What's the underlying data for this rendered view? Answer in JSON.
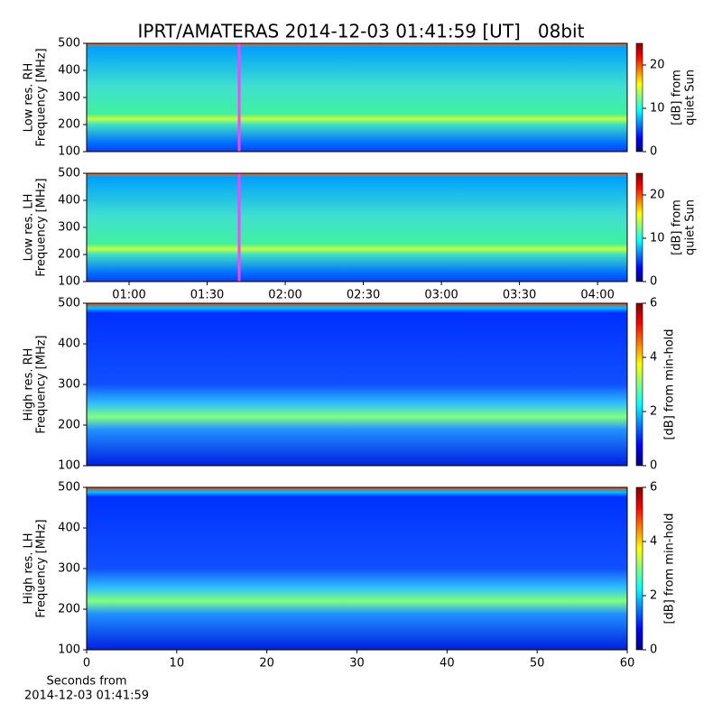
{
  "title": "IPRT/AMATERAS 2014-12-03 01:41:59 [UT]   08bit",
  "chart_data": [
    {
      "type": "spectrogram",
      "ylabel": [
        "Low res. RH",
        "Frequency [MHz]"
      ],
      "xlim": [
        43.7,
        251.4
      ],
      "ylim": [
        100,
        500
      ],
      "yticks": [
        100,
        200,
        300,
        400,
        500
      ],
      "colorbar": {
        "label": [
          "[dB] from",
          "quiet Sun"
        ],
        "lim": [
          0,
          25
        ],
        "ticks": [
          0,
          10,
          20
        ]
      }
    },
    {
      "type": "spectrogram",
      "ylabel": [
        "Low res. LH",
        "Frequency [MHz]"
      ],
      "xlim": [
        43.7,
        251.4
      ],
      "ylim": [
        100,
        500
      ],
      "yticks": [
        100,
        200,
        300,
        400,
        500
      ],
      "xticks": [
        {
          "value": 60,
          "label": "01:00"
        },
        {
          "value": 90,
          "label": "01:30"
        },
        {
          "value": 120,
          "label": "02:00"
        },
        {
          "value": 150,
          "label": "02:30"
        },
        {
          "value": 180,
          "label": "03:00"
        },
        {
          "value": 210,
          "label": "03:30"
        },
        {
          "value": 240,
          "label": "04:00"
        }
      ],
      "colorbar": {
        "label": [
          "[dB] from",
          "quiet Sun"
        ],
        "lim": [
          0,
          25
        ],
        "ticks": [
          0,
          10,
          20
        ]
      }
    },
    {
      "type": "spectrogram",
      "ylabel": [
        "High res. RH",
        "Frequency [MHz]"
      ],
      "xlim": [
        0,
        60
      ],
      "ylim": [
        100,
        500
      ],
      "yticks": [
        100,
        200,
        300,
        400,
        500
      ],
      "colorbar": {
        "label": [
          "[dB] from min-hold"
        ],
        "lim": [
          0,
          6
        ],
        "ticks": [
          0,
          2,
          4,
          6
        ]
      }
    },
    {
      "type": "spectrogram",
      "ylabel": [
        "High res. LH",
        "Frequency [MHz]"
      ],
      "xlim": [
        0,
        60
      ],
      "ylim": [
        100,
        500
      ],
      "yticks": [
        100,
        200,
        300,
        400,
        500
      ],
      "xticks": [
        0,
        10,
        20,
        30,
        40,
        50,
        60
      ],
      "xlabel": [
        "Seconds from",
        "2014-12-03 01:41:59"
      ],
      "colorbar": {
        "label": [
          "[dB] from min-hold"
        ],
        "lim": [
          0,
          6
        ],
        "ticks": [
          0,
          2,
          4,
          6
        ]
      }
    }
  ]
}
